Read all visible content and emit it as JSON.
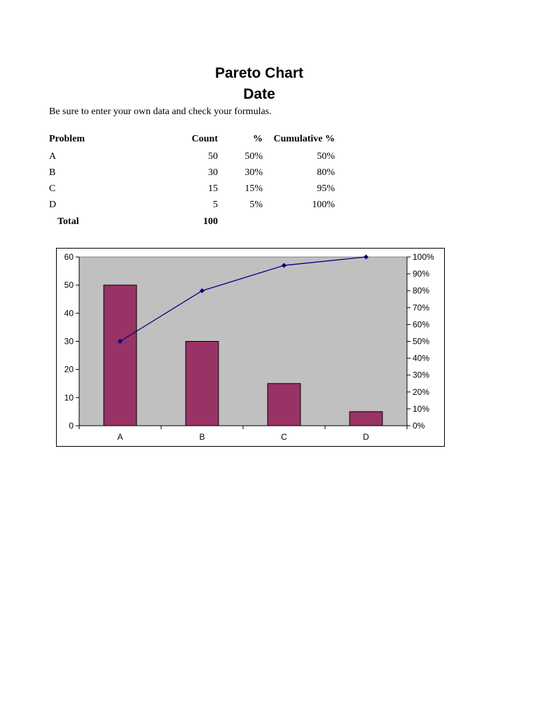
{
  "title": "Pareto Chart",
  "subtitle": "Date",
  "note": "Be sure to enter your own data and check your formulas.",
  "table": {
    "headers": {
      "problem": "Problem",
      "count": "Count",
      "pct": "%",
      "cum": "Cumulative %"
    },
    "rows": [
      {
        "problem": "A",
        "count": "50",
        "pct": "50%",
        "cum": "50%"
      },
      {
        "problem": "B",
        "count": "30",
        "pct": "30%",
        "cum": "80%"
      },
      {
        "problem": "C",
        "count": "15",
        "pct": "15%",
        "cum": "95%"
      },
      {
        "problem": "D",
        "count": "5",
        "pct": "5%",
        "cum": "100%"
      }
    ],
    "total_label": "Total",
    "total_value": "100"
  },
  "chart_data": {
    "type": "bar",
    "title": "",
    "xlabel": "",
    "ylabel": "",
    "categories": [
      "A",
      "B",
      "C",
      "D"
    ],
    "series": [
      {
        "values": [
          50,
          30,
          15,
          5
        ],
        "render": "bar",
        "axis": "left",
        "color": "#993366"
      },
      {
        "values": [
          50,
          80,
          95,
          100
        ],
        "render": "line",
        "axis": "right",
        "color": "#000080"
      }
    ],
    "ylim": [
      0,
      60
    ],
    "y_ticks": [
      "0",
      "10",
      "20",
      "30",
      "40",
      "50",
      "60"
    ],
    "y2lim": [
      0,
      100
    ],
    "y2_ticks": [
      "0%",
      "10%",
      "20%",
      "30%",
      "40%",
      "50%",
      "60%",
      "70%",
      "80%",
      "90%",
      "100%"
    ],
    "plot_background": "#C0C0C0",
    "grid": false,
    "legend": "none"
  }
}
